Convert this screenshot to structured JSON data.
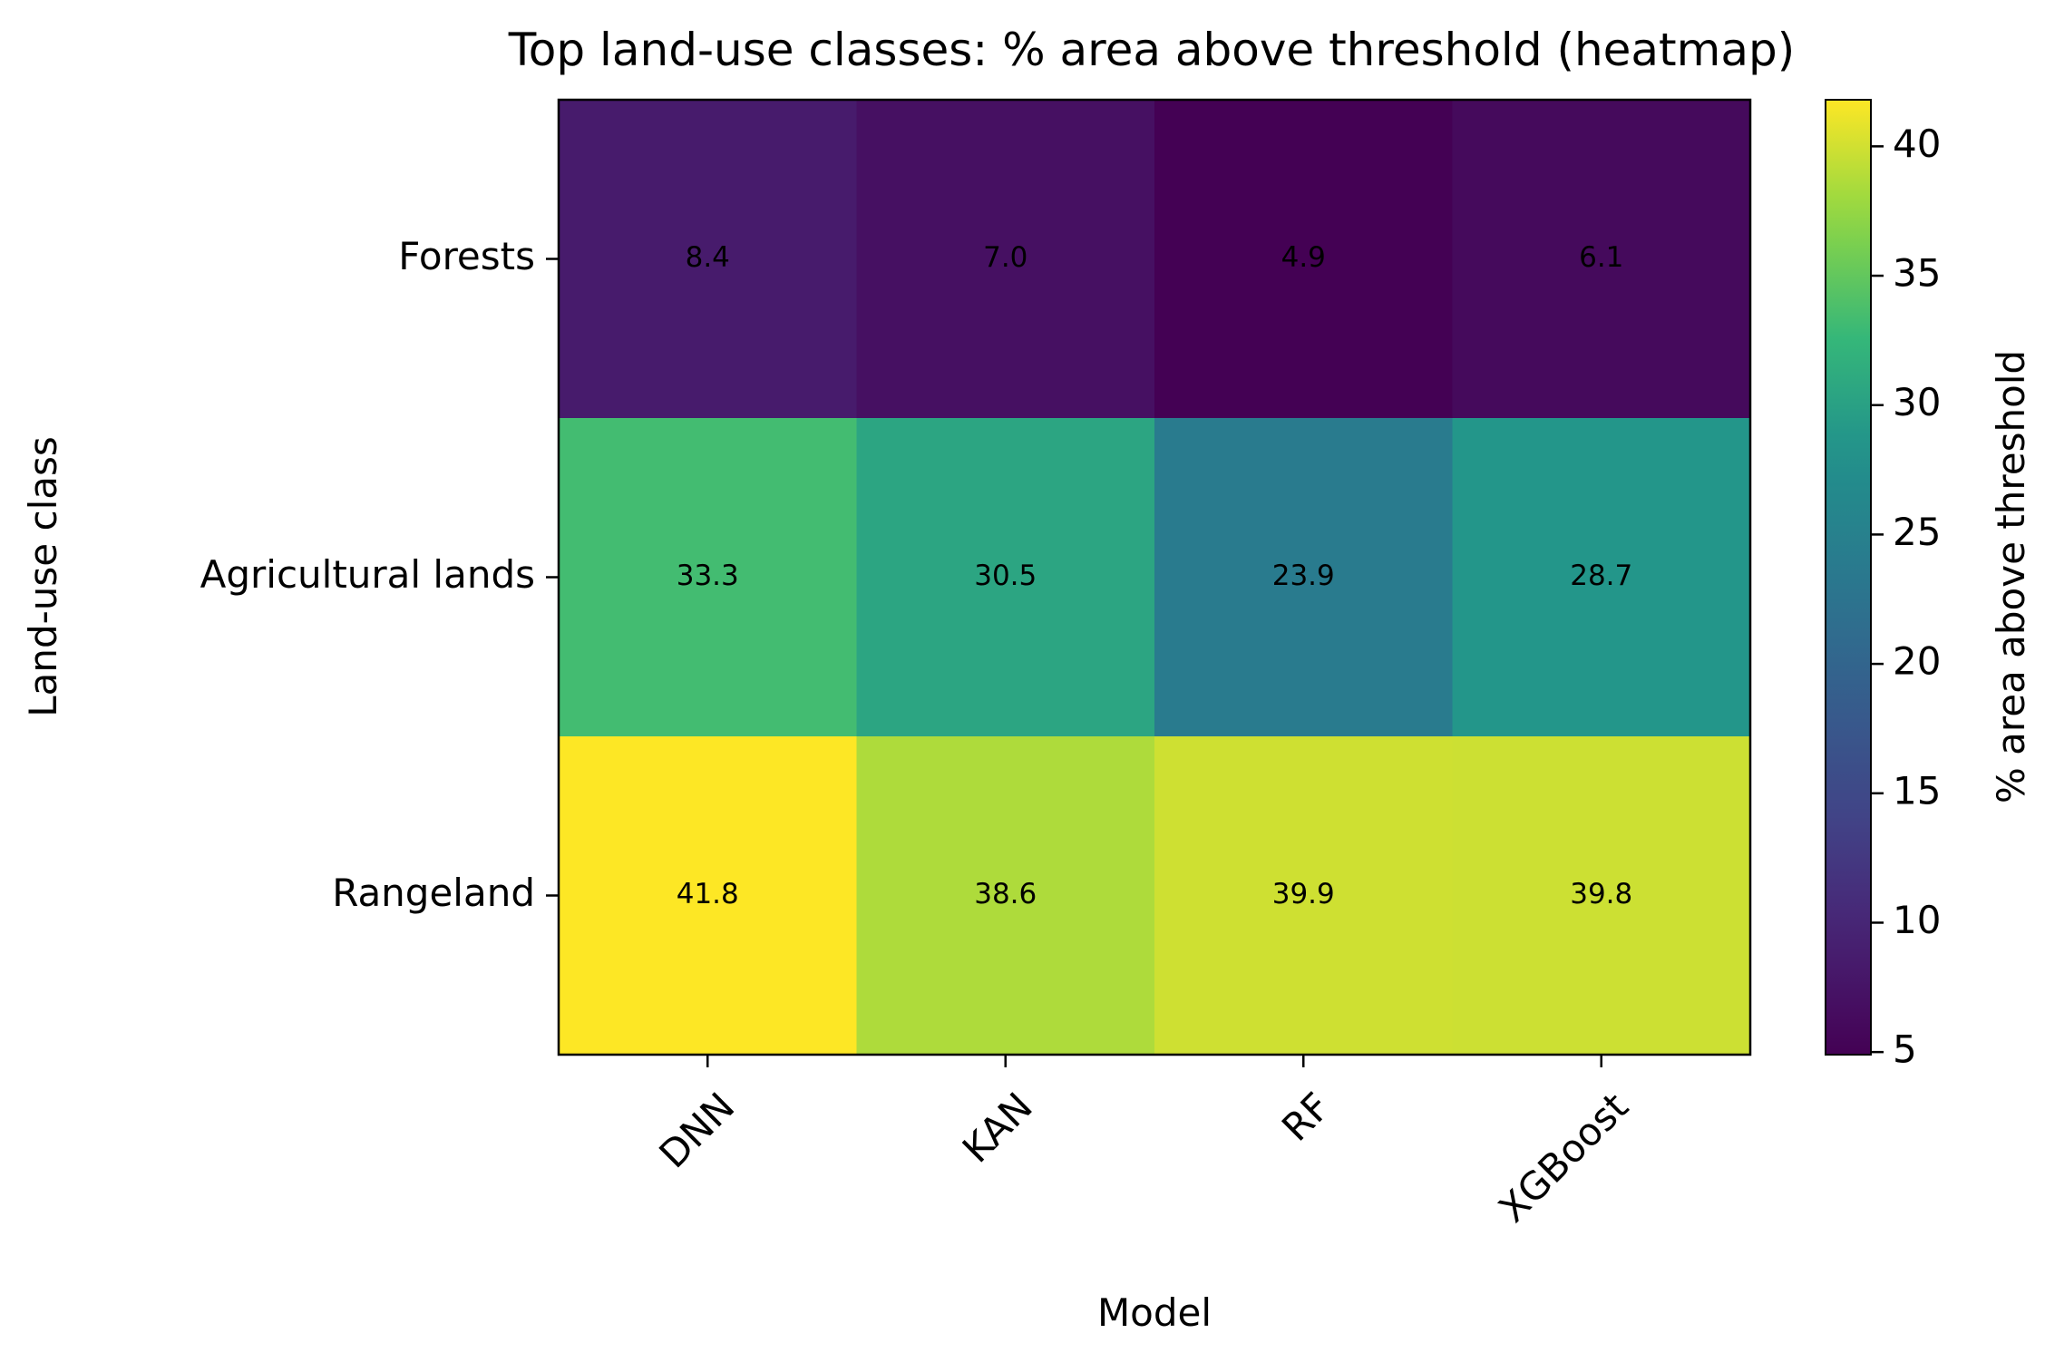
{
  "chart_data": {
    "type": "heatmap",
    "title": "Top land-use classes: % area above threshold (heatmap)",
    "xlabel": "Model",
    "ylabel": "Land-use class",
    "x_categories": [
      "DNN",
      "KAN",
      "RF",
      "XGBoost"
    ],
    "y_categories": [
      "Forests",
      "Agricultural lands",
      "Rangeland"
    ],
    "values": [
      [
        8.4,
        7.0,
        4.9,
        6.1
      ],
      [
        33.3,
        30.5,
        23.9,
        28.7
      ],
      [
        41.8,
        38.6,
        39.9,
        39.8
      ]
    ],
    "value_labels": [
      [
        "8.4",
        "7.0",
        "4.9",
        "6.1"
      ],
      [
        "33.3",
        "30.5",
        "23.9",
        "28.7"
      ],
      [
        "41.8",
        "38.6",
        "39.9",
        "39.8"
      ]
    ],
    "colormap": "viridis",
    "vmin": 4.9,
    "vmax": 41.8,
    "colorbar": {
      "label": "% area above threshold",
      "ticks": [
        5,
        10,
        15,
        20,
        25,
        30,
        35,
        40
      ],
      "tick_labels": [
        "5",
        "10",
        "15",
        "20",
        "25",
        "30",
        "35",
        "40"
      ]
    },
    "colors": {
      "frame": "#000000",
      "text": "#000000"
    }
  }
}
